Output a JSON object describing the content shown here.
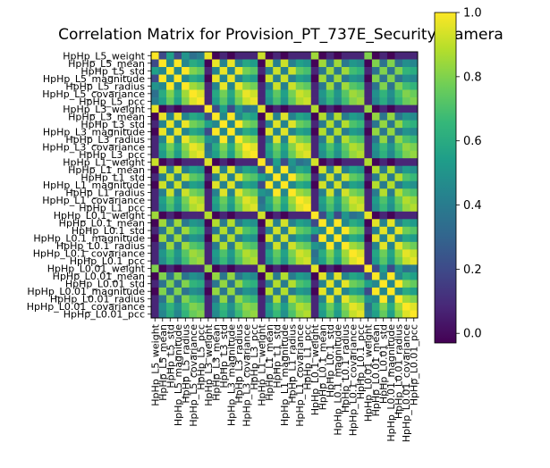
{
  "chart_data": {
    "type": "heatmap",
    "title": "Correlation Matrix for Provision_PT_737E_Security_Camera",
    "labels": [
      "HpHp_L5_weight",
      "HpHp_L5_mean",
      "HpHp_L5_std",
      "HpHp_L5_magnitude",
      "HpHp_L5_radius",
      "HpHp_L5_covariance",
      "HpHp_L5_pcc",
      "HpHp_L3_weight",
      "HpHp_L3_mean",
      "HpHp_L3_std",
      "HpHp_L3_magnitude",
      "HpHp_L3_radius",
      "HpHp_L3_covariance",
      "HpHp_L3_pcc",
      "HpHp_L1_weight",
      "HpHp_L1_mean",
      "HpHp_L1_std",
      "HpHp_L1_magnitude",
      "HpHp_L1_radius",
      "HpHp_L1_covariance",
      "HpHp_L1_pcc",
      "HpHp_L0.1_weight",
      "HpHp_L0.1_mean",
      "HpHp_L0.1_std",
      "HpHp_L0.1_magnitude",
      "HpHp_L0.1_radius",
      "HpHp_L0.1_covariance",
      "HpHp_L0.1_pcc",
      "HpHp_L0.01_weight",
      "HpHp_L0.01_mean",
      "HpHp_L0.01_std",
      "HpHp_L0.01_magnitude",
      "HpHp_L0.01_radius",
      "HpHp_L0.01_covariance",
      "HpHp_L0.01_pcc"
    ],
    "feature_block_pattern": [
      [
        1.0,
        0.2,
        0.55,
        0.2,
        0.5,
        0.35,
        0.4
      ],
      [
        0.2,
        1.0,
        0.45,
        1.0,
        0.45,
        0.6,
        0.55
      ],
      [
        0.55,
        0.45,
        1.0,
        0.45,
        1.0,
        0.8,
        0.75
      ],
      [
        0.2,
        1.0,
        0.45,
        1.0,
        0.45,
        0.6,
        0.55
      ],
      [
        0.5,
        0.45,
        1.0,
        0.45,
        1.0,
        0.85,
        0.8
      ],
      [
        0.35,
        0.6,
        0.8,
        0.6,
        0.85,
        1.0,
        0.95
      ],
      [
        0.4,
        0.55,
        0.75,
        0.55,
        0.8,
        0.95,
        1.0
      ]
    ],
    "window_block_scale": [
      [
        1.0,
        0.97,
        0.92,
        0.85,
        0.8
      ],
      [
        0.97,
        1.0,
        0.95,
        0.88,
        0.83
      ],
      [
        0.92,
        0.95,
        1.0,
        0.93,
        0.88
      ],
      [
        0.85,
        0.88,
        0.93,
        1.0,
        0.96
      ],
      [
        0.8,
        0.83,
        0.88,
        0.96,
        1.0
      ]
    ],
    "vmin": -0.03,
    "vmax": 1.0,
    "colorbar": {
      "ticks": [
        0.0,
        0.2,
        0.4,
        0.6,
        0.8,
        1.0
      ],
      "tick_labels": [
        "0.0",
        "0.2",
        "0.4",
        "0.6",
        "0.8",
        "1.0"
      ]
    },
    "colormap": "viridis",
    "colormap_stops": [
      "#440154",
      "#482878",
      "#3e4a89",
      "#31688e",
      "#26828e",
      "#1f9e89",
      "#35b779",
      "#6ece58",
      "#b5de2b",
      "#fde725"
    ],
    "grid": false
  }
}
